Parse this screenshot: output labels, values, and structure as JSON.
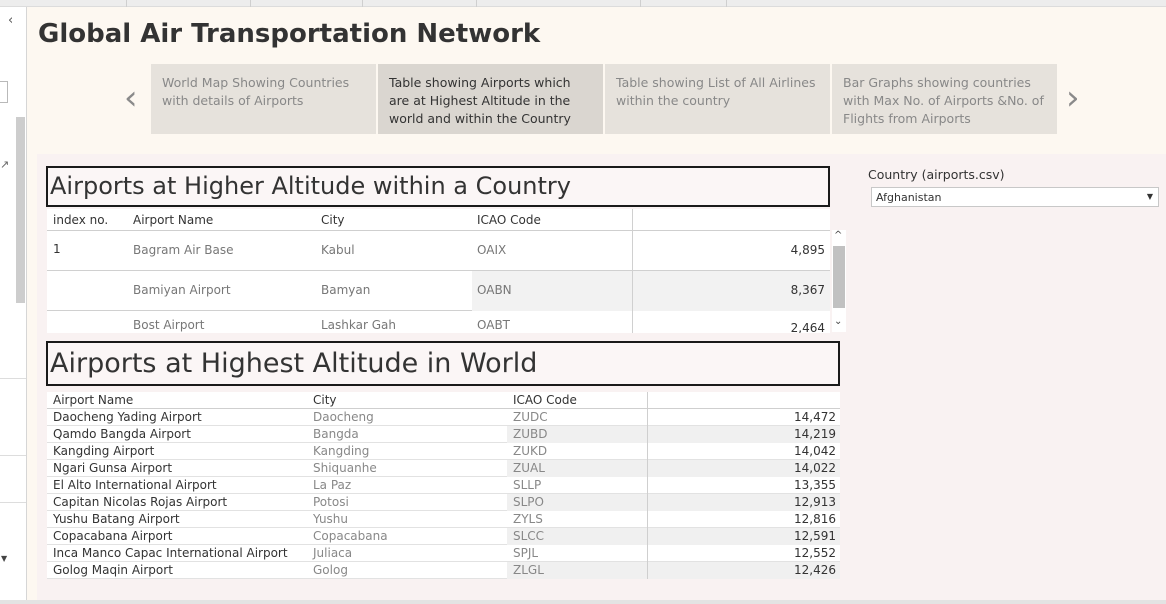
{
  "dashboard": {
    "title": "Global Air Transportation Network"
  },
  "story": {
    "prev_arrow": "‹",
    "next_arrow": "›",
    "steps": [
      "World Map Showing Countries with details of Airports",
      "Table showing Airports which are at Highest Altitude in the world and within the Country",
      "Table showing List of All Airlines within the country",
      "Bar Graphs showing countries with Max No. of Airports &No. of Flights from Airports"
    ]
  },
  "country_table": {
    "title": "Airports at Higher Altitude within a Country",
    "headers": {
      "index": "index no.",
      "name": "Airport Name",
      "city": "City",
      "icao": "ICAO Code"
    },
    "index_value": "1",
    "rows": [
      {
        "name": "Bagram Air Base",
        "city": "Kabul",
        "icao": "OAIX",
        "altitude": "4,895"
      },
      {
        "name": "Bamiyan Airport",
        "city": "Bamyan",
        "icao": "OABN",
        "altitude": "8,367"
      },
      {
        "name": "Bost Airport",
        "city": "Lashkar Gah",
        "icao": "OABT",
        "altitude": "2,464"
      }
    ]
  },
  "world_table": {
    "title": "Airports at Highest Altitude in World",
    "headers": {
      "name": "Airport Name",
      "city": "City",
      "icao": "ICAO Code"
    },
    "rows": [
      {
        "name": "Daocheng Yading Airport",
        "city": "Daocheng",
        "icao": "ZUDC",
        "altitude": "14,472"
      },
      {
        "name": "Qamdo Bangda Airport",
        "city": "Bangda",
        "icao": "ZUBD",
        "altitude": "14,219"
      },
      {
        "name": "Kangding Airport",
        "city": "Kangding",
        "icao": "ZUKD",
        "altitude": "14,042"
      },
      {
        "name": "Ngari Gunsa Airport",
        "city": "Shiquanhe",
        "icao": "ZUAL",
        "altitude": "14,022"
      },
      {
        "name": "El Alto International Airport",
        "city": "La Paz",
        "icao": "SLLP",
        "altitude": "13,355"
      },
      {
        "name": "Capitan Nicolas Rojas Airport",
        "city": "Potosi",
        "icao": "SLPO",
        "altitude": "12,913"
      },
      {
        "name": "Yushu Batang Airport",
        "city": "Yushu",
        "icao": "ZYLS",
        "altitude": "12,816"
      },
      {
        "name": "Copacabana Airport",
        "city": "Copacabana",
        "icao": "SLCC",
        "altitude": "12,591"
      },
      {
        "name": "Inca Manco Capac International Airport",
        "city": "Juliaca",
        "icao": "SPJL",
        "altitude": "12,552"
      },
      {
        "name": "Golog Maqin Airport",
        "city": "Golog",
        "icao": "ZLGL",
        "altitude": "12,426"
      }
    ]
  },
  "filter": {
    "label": "Country (airports.csv)",
    "value": "Afghanistan"
  },
  "icons": {
    "collapse": "chevron-left-icon",
    "external": "external-link-icon",
    "scroll_up": "chevron-up-icon",
    "scroll_down": "chevron-down-icon",
    "dropdown": "caret-down-icon"
  }
}
